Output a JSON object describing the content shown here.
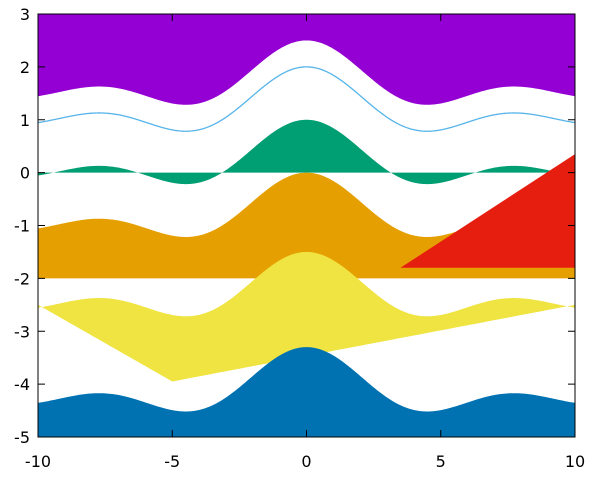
{
  "chart_data": {
    "type": "area",
    "xlim": [
      -10,
      10
    ],
    "ylim": [
      -5,
      3
    ],
    "x_ticks": [
      -10,
      -5,
      0,
      5,
      10
    ],
    "y_ticks": [
      -5,
      -4,
      -3,
      -2,
      -1,
      0,
      1,
      2,
      3
    ],
    "x_tick_labels": [
      "-10",
      "-5",
      "0",
      "5",
      "10"
    ],
    "y_tick_labels": [
      "-5",
      "-4",
      "-3",
      "-2",
      "-1",
      "0",
      "1",
      "2",
      "3"
    ],
    "grid": false,
    "legend": "none",
    "title": "",
    "xlabel": "",
    "ylabel": "",
    "base_curve": "y = sin(x)/x",
    "series": [
      {
        "style": "fill_above",
        "offset": 1.5,
        "fill_to": 3,
        "color": "#9400d3"
      },
      {
        "style": "line",
        "offset": 1.0,
        "color": "#56b4e9"
      },
      {
        "style": "fill_to_zero",
        "offset": 0.0,
        "fill_to": 0,
        "color": "#009e73"
      },
      {
        "style": "fill_below",
        "offset": -1.0,
        "fill_to": -2,
        "color": "#e69f00"
      },
      {
        "style": "fill_between_line",
        "offset": -2.5,
        "line": [
          [
            -10,
            -2.5
          ],
          [
            -5,
            -3.95
          ],
          [
            10,
            -2.5
          ]
        ],
        "color": "#f0e442"
      },
      {
        "style": "fill_below",
        "offset": -4.3,
        "fill_to": -5,
        "color": "#0072b2"
      },
      {
        "style": "polygon",
        "points": [
          [
            3.5,
            -1.8
          ],
          [
            10,
            -1.8
          ],
          [
            10,
            0.35
          ]
        ],
        "color": "#e51e10"
      }
    ]
  }
}
